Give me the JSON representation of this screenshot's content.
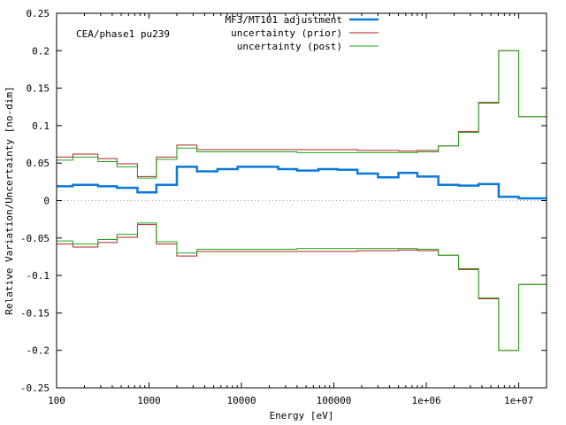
{
  "chart_data": {
    "type": "line",
    "subtype": "step",
    "title": "",
    "annotation": "CEA/phase1 pu239",
    "xlabel": "Energy [eV]",
    "ylabel": "Relative Variation/Uncertainty [no-dim]",
    "xscale": "log",
    "xlim": [
      100,
      20000000
    ],
    "ylim": [
      -0.25,
      0.25
    ],
    "x_ticks": [
      100,
      1000,
      10000,
      100000,
      1000000,
      10000000
    ],
    "x_tick_labels": [
      "100",
      "1000",
      "10000",
      "100000",
      "1e+06",
      "1e+07"
    ],
    "y_ticks": [
      -0.25,
      -0.2,
      -0.15,
      -0.1,
      -0.05,
      0,
      0.05,
      0.1,
      0.15,
      0.2,
      0.25
    ],
    "y_tick_labels": [
      "-0.25",
      "-0.2",
      "-0.15",
      "-0.1",
      "-0.05",
      "0",
      "0.05",
      "0.1",
      "0.15",
      "0.2",
      "0.25"
    ],
    "grid": false,
    "zero_line": true,
    "legend_position": "top-right",
    "bin_edges": [
      100,
      150,
      280,
      450,
      750,
      1200,
      2000,
      3300,
      5500,
      9100,
      15000,
      25000,
      40000,
      68000,
      110000,
      180000,
      300000,
      500000,
      800000,
      1350000,
      2230000,
      3680000,
      6070000,
      10000000,
      20000000
    ],
    "series": [
      {
        "name": "MF3/MT101 adjustment",
        "color": "#0a7ad8",
        "line_width": 2.5,
        "values": [
          0.019,
          0.021,
          0.019,
          0.017,
          0.011,
          0.021,
          0.045,
          0.039,
          0.042,
          0.045,
          0.045,
          0.042,
          0.04,
          0.042,
          0.041,
          0.036,
          0.031,
          0.037,
          0.032,
          0.021,
          0.02,
          0.022,
          0.005,
          0.003
        ]
      },
      {
        "name": "uncertainty (prior)",
        "color": "#b22222",
        "line_width": 1,
        "symmetric": true,
        "values": [
          0.058,
          0.062,
          0.056,
          0.049,
          0.032,
          0.058,
          0.074,
          0.068,
          0.068,
          0.068,
          0.068,
          0.068,
          0.068,
          0.068,
          0.068,
          0.067,
          0.067,
          0.066,
          0.067,
          0.073,
          0.092,
          0.131,
          0.2,
          0.112
        ]
      },
      {
        "name": "uncertainty (post)",
        "color": "#1aa81a",
        "line_width": 1,
        "symmetric": true,
        "values": [
          0.054,
          0.058,
          0.052,
          0.045,
          0.03,
          0.055,
          0.07,
          0.065,
          0.065,
          0.065,
          0.065,
          0.065,
          0.064,
          0.064,
          0.064,
          0.064,
          0.064,
          0.064,
          0.065,
          0.073,
          0.091,
          0.13,
          0.2,
          0.112
        ]
      }
    ]
  }
}
